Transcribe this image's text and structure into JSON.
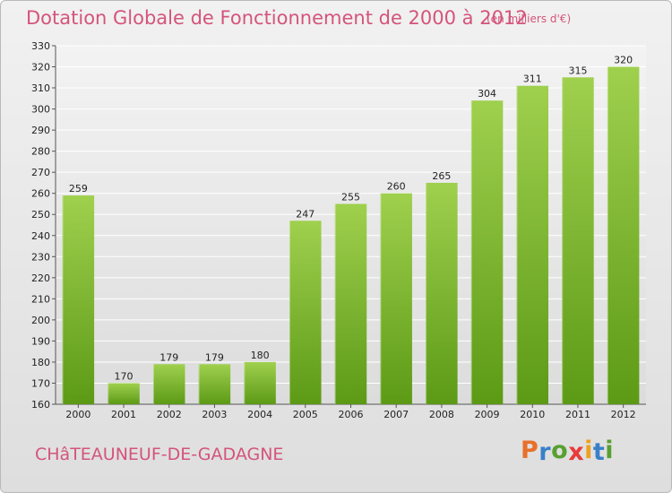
{
  "header": {
    "title": "Dotation Globale de Fonctionnement de 2000 à 2012",
    "unit": "(en milliers d'€)"
  },
  "footer": {
    "place": "CHâTEAUNEUF-DE-GADAGNE",
    "logo_letters": [
      "P",
      "r",
      "o",
      "x",
      "i",
      "t",
      "i"
    ]
  },
  "colors": {
    "title": "#d4547c",
    "bar_top": "#9fd04e",
    "bar_bottom": "#5c9a16",
    "logo": [
      "#e8702a",
      "#3a80c8",
      "#58a030",
      "#e83a3a",
      "#f0a020",
      "#3a80c8",
      "#58a030"
    ]
  },
  "chart_data": {
    "type": "bar",
    "categories": [
      "2000",
      "2001",
      "2002",
      "2003",
      "2004",
      "2005",
      "2006",
      "2007",
      "2008",
      "2009",
      "2010",
      "2011",
      "2012"
    ],
    "values": [
      259,
      170,
      179,
      179,
      180,
      247,
      255,
      260,
      265,
      304,
      311,
      315,
      320
    ],
    "ylim": [
      160,
      330
    ],
    "yticks": [
      160,
      170,
      180,
      190,
      200,
      210,
      220,
      230,
      240,
      250,
      260,
      270,
      280,
      290,
      300,
      310,
      320,
      330
    ],
    "grid": true,
    "legend": "none"
  }
}
